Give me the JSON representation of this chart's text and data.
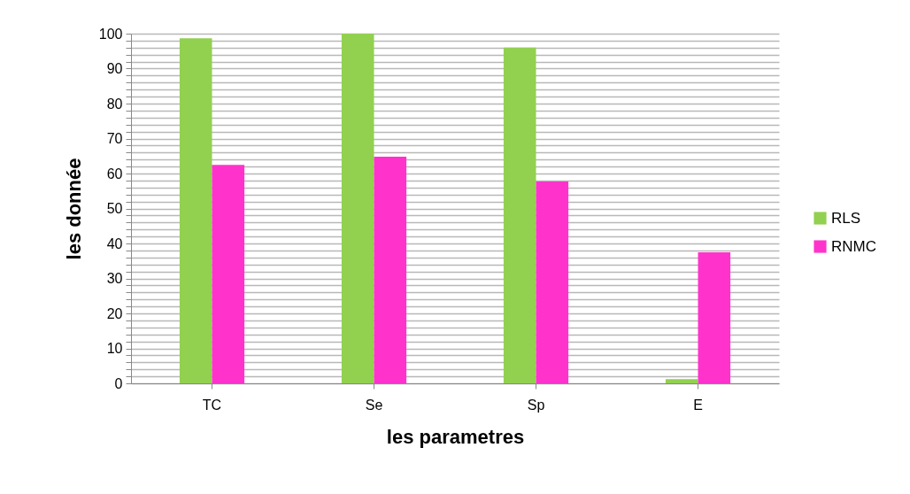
{
  "chart_data": {
    "type": "bar",
    "xlabel": "les  parametres",
    "ylabel": "les  donnée",
    "categories": [
      "TC",
      "Se",
      "Sp",
      "E"
    ],
    "series": [
      {
        "name": "RLS",
        "color": "#92d050",
        "values": [
          98.7,
          100,
          96,
          1.2
        ]
      },
      {
        "name": "RNMC",
        "color": "#ff33cc",
        "values": [
          62.5,
          64.8,
          57.7,
          37.5
        ]
      }
    ],
    "ylim": [
      0,
      100
    ],
    "yticks": [
      0,
      {
        "value": 2,
        "label": null
      },
      {
        "value": 4,
        "label": null
      },
      {
        "value": 6,
        "label": null
      },
      {
        "value": 8,
        "label": null
      },
      10,
      {
        "value": 12,
        "label": null
      },
      {
        "value": 14,
        "label": null
      },
      {
        "value": 16,
        "label": null
      },
      {
        "value": 18,
        "label": null
      },
      20,
      {
        "value": 22,
        "label": null
      },
      {
        "value": 24,
        "label": null
      },
      {
        "value": 26,
        "label": null
      },
      {
        "value": 28,
        "label": null
      },
      30,
      {
        "value": 32,
        "label": null
      },
      {
        "value": 34,
        "label": null
      },
      {
        "value": 36,
        "label": null
      },
      {
        "value": 38,
        "label": null
      },
      40,
      {
        "value": 42,
        "label": null
      },
      {
        "value": 44,
        "label": null
      },
      {
        "value": 46,
        "label": null
      },
      {
        "value": 48,
        "label": null
      },
      50,
      {
        "value": 52,
        "label": null
      },
      {
        "value": 54,
        "label": null
      },
      {
        "value": 56,
        "label": null
      },
      {
        "value": 58,
        "label": null
      },
      60,
      {
        "value": 62,
        "label": null
      },
      {
        "value": 64,
        "label": null
      },
      {
        "value": 66,
        "label": null
      },
      {
        "value": 68,
        "label": null
      },
      70,
      {
        "value": 72,
        "label": null
      },
      {
        "value": 74,
        "label": null
      },
      {
        "value": 76,
        "label": null
      },
      {
        "value": 78,
        "label": null
      },
      80,
      {
        "value": 82,
        "label": null
      },
      {
        "value": 84,
        "label": null
      },
      {
        "value": 86,
        "label": null
      },
      {
        "value": 88,
        "label": null
      },
      90,
      {
        "value": 92,
        "label": null
      },
      {
        "value": 94,
        "label": null
      },
      {
        "value": 96,
        "label": null
      },
      {
        "value": 98,
        "label": null
      },
      100
    ],
    "grid": true,
    "legend": "right"
  }
}
